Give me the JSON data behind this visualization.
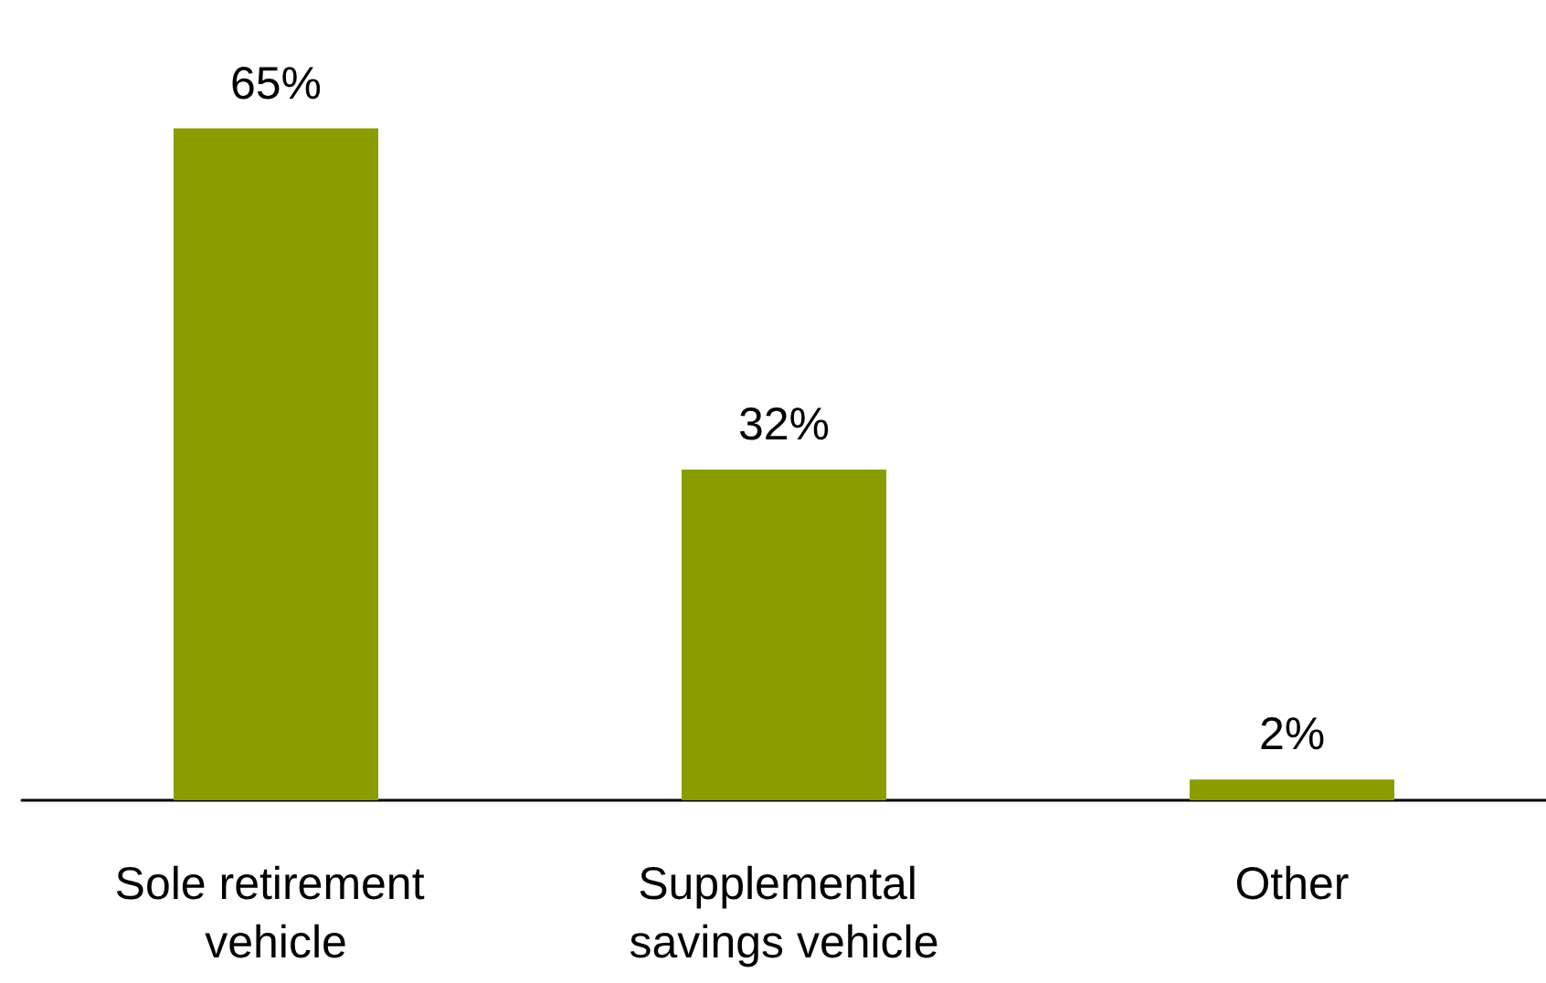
{
  "chart_data": {
    "type": "bar",
    "categories": [
      "Sole retirement vehicle",
      "Supplemental savings vehicle",
      "Other"
    ],
    "values": [
      65,
      32,
      2
    ],
    "value_labels": [
      "65%",
      "32%",
      "2%"
    ],
    "color": "#8a9d00"
  }
}
